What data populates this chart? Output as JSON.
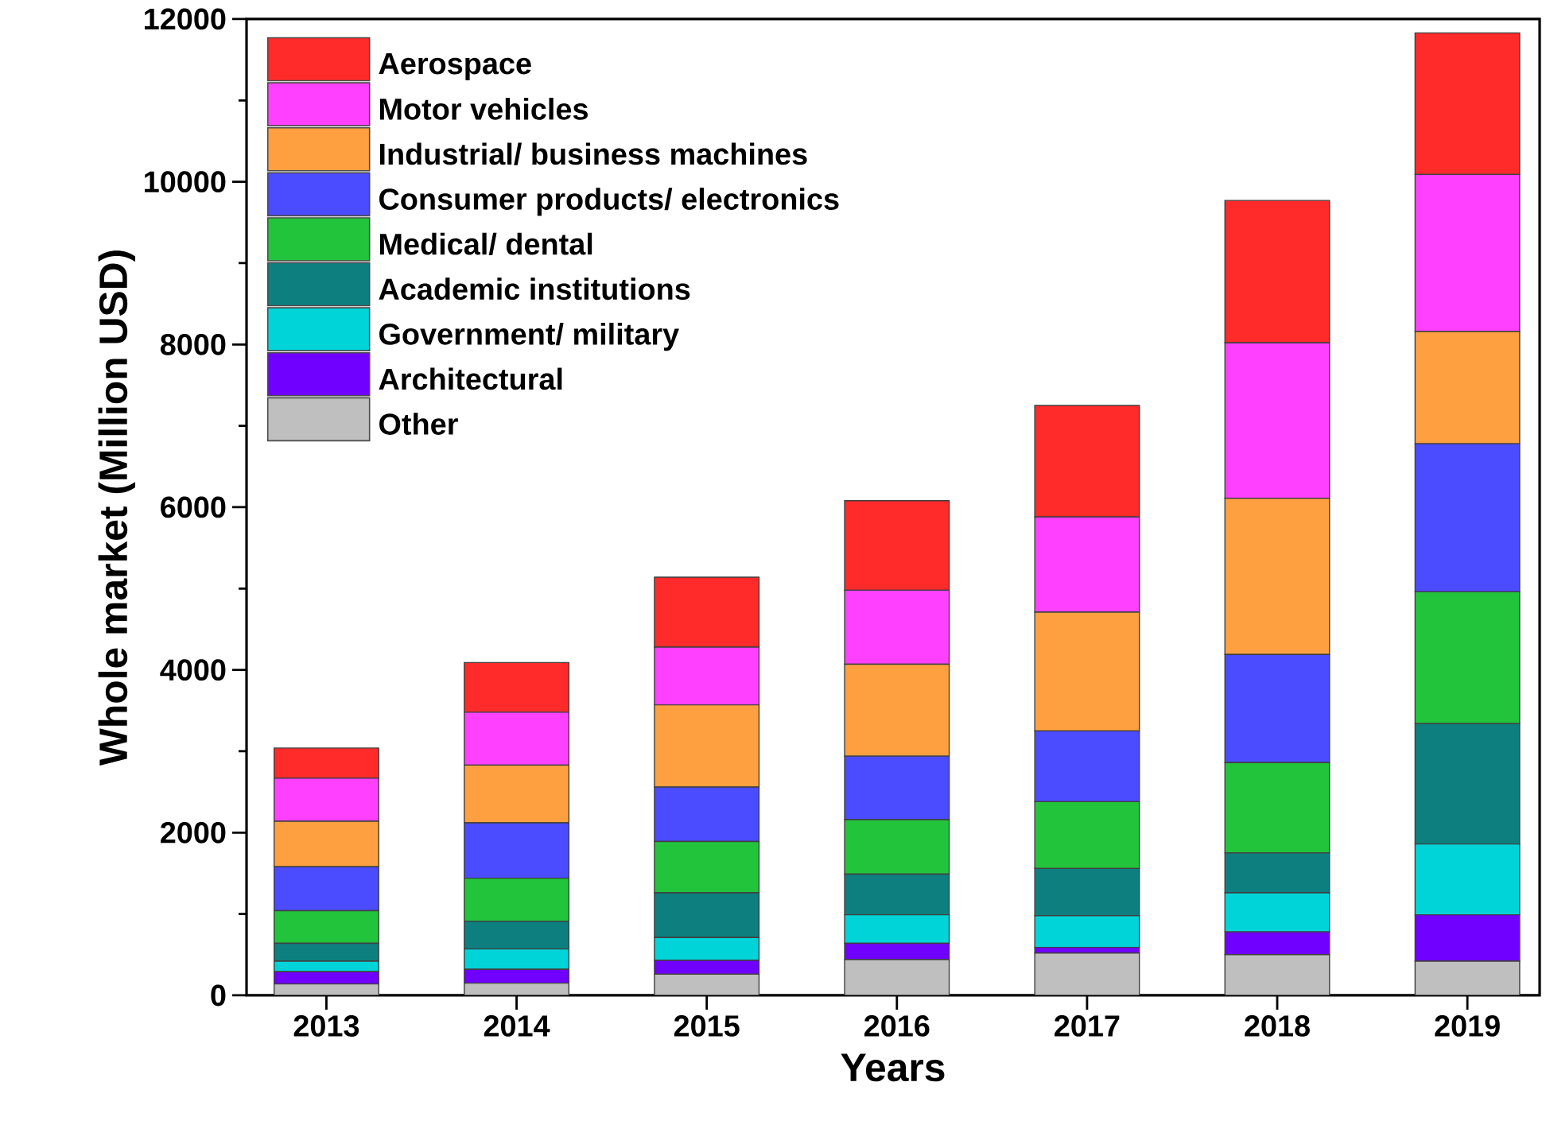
{
  "chart_data": {
    "type": "bar",
    "stacked": true,
    "xlabel": "Years",
    "ylabel": "Whole market (Million USD)",
    "categories": [
      "2013",
      "2014",
      "2015",
      "2016",
      "2017",
      "2018",
      "2019"
    ],
    "ylim": [
      0,
      12000
    ],
    "yticks": [
      0,
      2000,
      4000,
      6000,
      8000,
      10000,
      12000
    ],
    "grid": false,
    "legend": "top left",
    "series": [
      {
        "name": "Other",
        "color": "#bfbfbf",
        "values": [
          140,
          150,
          260,
          440,
          520,
          500,
          420
        ]
      },
      {
        "name": "Architectural",
        "color": "#7000ff",
        "values": [
          150,
          170,
          170,
          200,
          70,
          280,
          570
        ]
      },
      {
        "name": "Government/ military",
        "color": "#00d4d8",
        "values": [
          130,
          250,
          280,
          350,
          390,
          480,
          870
        ]
      },
      {
        "name": "Academic  institutions",
        "color": "#0e7f7f",
        "values": [
          220,
          340,
          550,
          500,
          580,
          490,
          1480
        ]
      },
      {
        "name": "Medical/ dental",
        "color": "#22c43c",
        "values": [
          400,
          530,
          630,
          670,
          820,
          1110,
          1620
        ]
      },
      {
        "name": "Consumer products/ electronics",
        "color": "#4b4bff",
        "values": [
          540,
          680,
          670,
          780,
          870,
          1330,
          1820
        ]
      },
      {
        "name": "Industrial/ business machines",
        "color": "#ffa040",
        "values": [
          560,
          710,
          1010,
          1130,
          1460,
          1920,
          1380
        ]
      },
      {
        "name": "Motor vehicles",
        "color": "#ff40ff",
        "values": [
          530,
          650,
          710,
          910,
          1170,
          1910,
          1930
        ]
      },
      {
        "name": "Aerospace",
        "color": "#ff2a2a",
        "values": [
          370,
          610,
          860,
          1100,
          1370,
          1750,
          1740
        ]
      }
    ]
  }
}
